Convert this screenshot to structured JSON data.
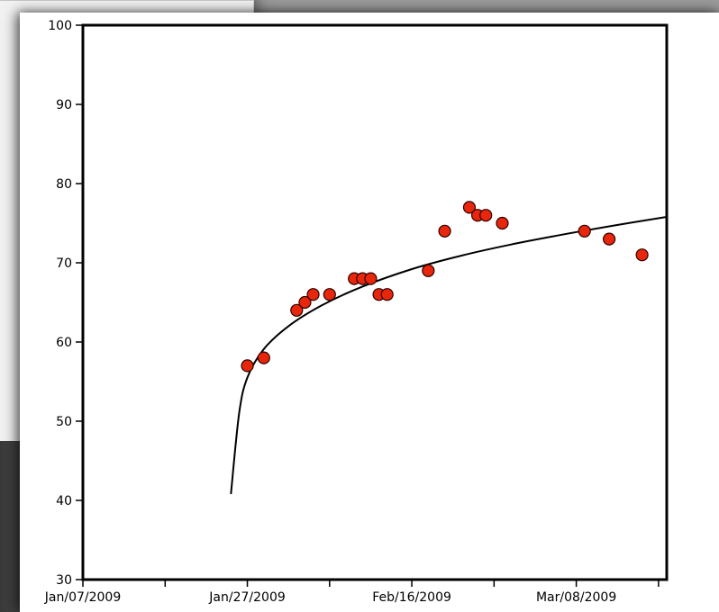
{
  "chart_data": {
    "type": "scatter",
    "title": "",
    "xlabel": "",
    "ylabel": "",
    "xlim": [
      "2009-01-07",
      "2009-03-19"
    ],
    "ylim": [
      30,
      100
    ],
    "x_tick_labels": [
      "Jan/07/2009",
      "Jan/27/2009",
      "Feb/16/2009",
      "Mar/08/2009"
    ],
    "x_ticks": [
      "2009-01-07",
      "2009-01-17",
      "2009-01-27",
      "2009-02-06",
      "2009-02-16",
      "2009-02-26",
      "2009-03-08",
      "2009-03-18"
    ],
    "y_ticks": [
      30,
      40,
      50,
      60,
      70,
      80,
      90,
      100
    ],
    "grid": false,
    "marker_color": "#e8260c",
    "trend_line": {
      "type": "logarithmic",
      "color": "#000000",
      "points": [
        {
          "x": "2009-01-25",
          "y": 40.8
        },
        {
          "x": "2009-01-26",
          "y": 51.0
        },
        {
          "x": "2009-01-27",
          "y": 55.5
        },
        {
          "x": "2009-01-29",
          "y": 59.1
        },
        {
          "x": "2009-02-01",
          "y": 62.0
        },
        {
          "x": "2009-02-05",
          "y": 64.6
        },
        {
          "x": "2009-02-10",
          "y": 67.0
        },
        {
          "x": "2009-02-16",
          "y": 69.2
        },
        {
          "x": "2009-02-22",
          "y": 70.9
        },
        {
          "x": "2009-02-28",
          "y": 72.3
        },
        {
          "x": "2009-03-06",
          "y": 73.5
        },
        {
          "x": "2009-03-12",
          "y": 74.6
        },
        {
          "x": "2009-03-19",
          "y": 75.8
        }
      ]
    },
    "series": [
      {
        "points": [
          {
            "x": "2009-01-27",
            "y": 57
          },
          {
            "x": "2009-01-29",
            "y": 58
          },
          {
            "x": "2009-02-02",
            "y": 64
          },
          {
            "x": "2009-02-03",
            "y": 65
          },
          {
            "x": "2009-02-04",
            "y": 66
          },
          {
            "x": "2009-02-06",
            "y": 66
          },
          {
            "x": "2009-02-09",
            "y": 68
          },
          {
            "x": "2009-02-10",
            "y": 68
          },
          {
            "x": "2009-02-11",
            "y": 68
          },
          {
            "x": "2009-02-12",
            "y": 66
          },
          {
            "x": "2009-02-13",
            "y": 66
          },
          {
            "x": "2009-02-18",
            "y": 69
          },
          {
            "x": "2009-02-20",
            "y": 74
          },
          {
            "x": "2009-02-23",
            "y": 77
          },
          {
            "x": "2009-02-24",
            "y": 76
          },
          {
            "x": "2009-02-25",
            "y": 76
          },
          {
            "x": "2009-02-27",
            "y": 75
          },
          {
            "x": "2009-03-09",
            "y": 74
          },
          {
            "x": "2009-03-12",
            "y": 73
          },
          {
            "x": "2009-03-16",
            "y": 71
          }
        ]
      }
    ]
  }
}
